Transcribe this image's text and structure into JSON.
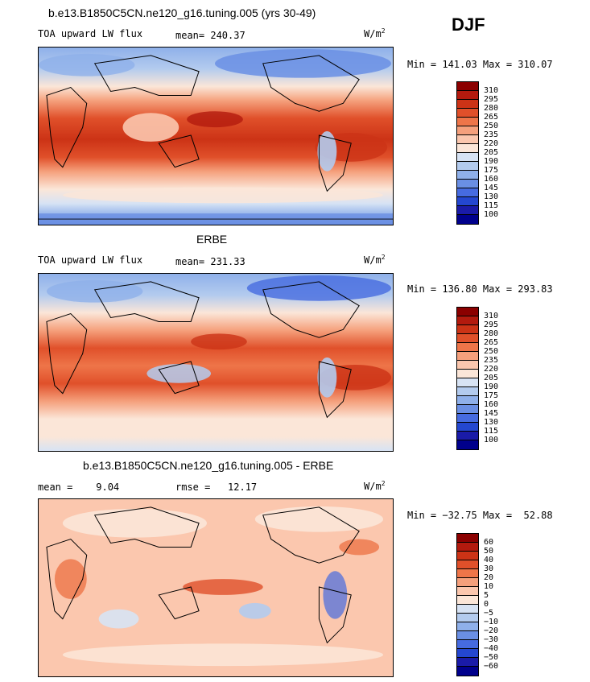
{
  "season": "DJF",
  "panels": [
    {
      "title": "b.e13.B1850C5CN.ne120_g16.tuning.005 (yrs 30-49)",
      "left_label": "TOA upward LW flux",
      "stat_label": "mean= 240.37",
      "units": "W/m",
      "units_exp": "2",
      "minmax": "Min = 141.03 Max = 310.07",
      "levels": [
        "310",
        "295",
        "280",
        "265",
        "250",
        "235",
        "220",
        "205",
        "190",
        "175",
        "160",
        "145",
        "130",
        "115",
        "100"
      ]
    },
    {
      "title": "ERBE",
      "left_label": "TOA upward LW flux",
      "stat_label": "mean= 231.33",
      "units": "W/m",
      "units_exp": "2",
      "minmax": "Min = 136.80 Max = 293.83",
      "levels": [
        "310",
        "295",
        "280",
        "265",
        "250",
        "235",
        "220",
        "205",
        "190",
        "175",
        "160",
        "145",
        "130",
        "115",
        "100"
      ]
    },
    {
      "title": "b.e13.B1850C5CN.ne120_g16.tuning.005 - ERBE",
      "left_label": "mean =    9.04",
      "stat_label": "rmse =   12.17",
      "units": "W/m",
      "units_exp": "2",
      "minmax": "Min = −32.75 Max =  52.88",
      "levels": [
        "60",
        "50",
        "40",
        "30",
        "20",
        "10",
        "5",
        "0",
        "−5",
        "−10",
        "−20",
        "−30",
        "−40",
        "−50",
        "−60"
      ]
    }
  ],
  "colors": {
    "scale": [
      "#8b0000",
      "#b31a0e",
      "#cc3316",
      "#e0502a",
      "#ee7549",
      "#f5a07c",
      "#fbc7ae",
      "#fbe6d8",
      "#d7e3f4",
      "#b3cbee",
      "#8fb0ea",
      "#6a8fe4",
      "#466be0",
      "#2447d0",
      "#1a1ba8",
      "#00008c"
    ]
  },
  "icons": [
    "coastline-map"
  ]
}
